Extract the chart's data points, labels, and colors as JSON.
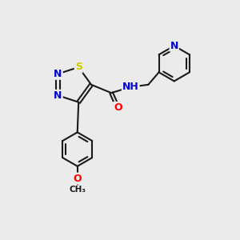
{
  "bg_color": "#ebebeb",
  "bond_color": "#1a1a1a",
  "bond_width": 1.5,
  "atom_colors": {
    "N": "#0000cc",
    "S": "#cccc00",
    "O": "#ff0000",
    "C": "#1a1a1a",
    "H": "#555555"
  },
  "font_size": 9,
  "figsize": [
    3.0,
    3.0
  ],
  "dpi": 100
}
